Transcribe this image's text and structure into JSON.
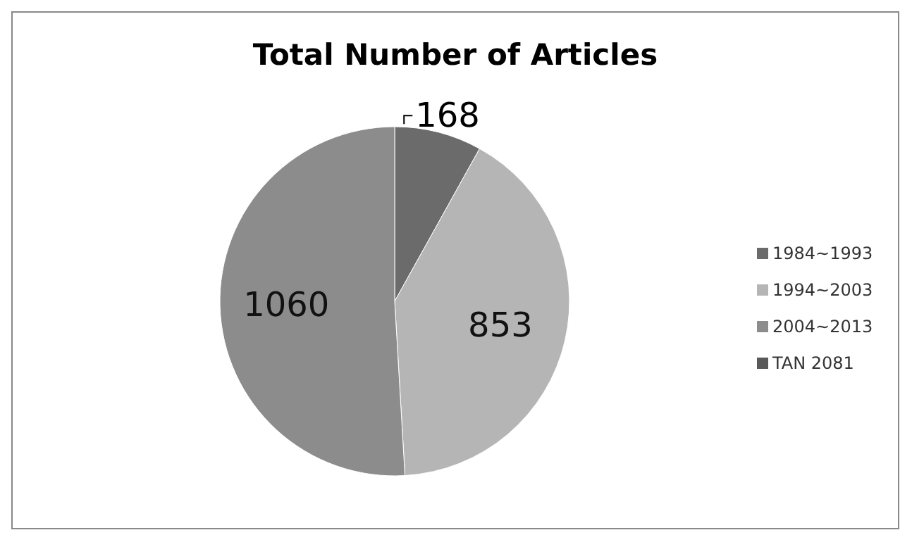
{
  "chart_data": {
    "type": "pie",
    "title": "Total Number of Articles",
    "categories": [
      "1984~1993",
      "1994~2003",
      "2004~2013",
      "TAN 2081"
    ],
    "values": [
      168,
      853,
      1060,
      0
    ],
    "colors": [
      "#6b6b6b",
      "#b5b5b5",
      "#8c8c8c",
      "#595959"
    ],
    "value_labels": [
      "168",
      "853",
      "1060",
      null
    ],
    "legend": "right"
  }
}
